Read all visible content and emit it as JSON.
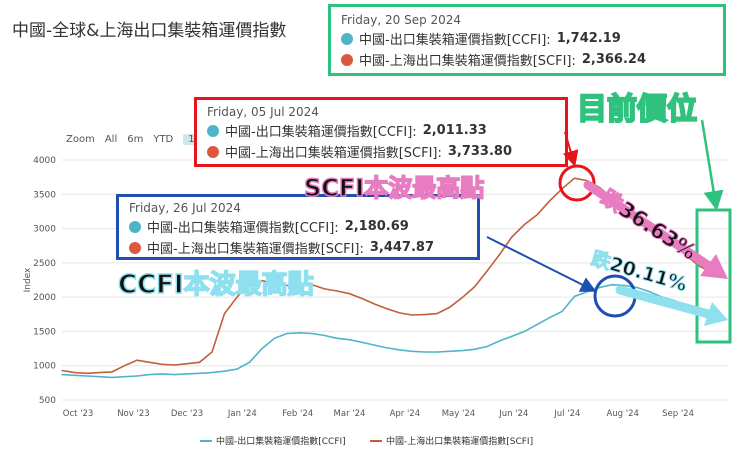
{
  "header": {
    "title": "中國-全球&上海出口集裝箱運價指數"
  },
  "zoom": {
    "label": "Zoom",
    "options": [
      "All",
      "6m",
      "YTD",
      "1y"
    ],
    "active": "1y"
  },
  "colors": {
    "ccfi": "#4fb3c9",
    "scfi": "#c0603b",
    "red": "#e8141b",
    "blue": "#1f4fb0",
    "green": "#2ec27e",
    "pink": "#e77cc0",
    "cyan": "#8fe0ef"
  },
  "tooltips": {
    "sep20": {
      "date": "Friday, 20 Sep 2024",
      "ccfi_label": "中國-出口集裝箱運價指數[CCFI]:",
      "ccfi_value": "1,742.19",
      "scfi_label": "中國-上海出口集裝箱運價指數[SCFI]:",
      "scfi_value": "2,366.24"
    },
    "jul05": {
      "date": "Friday, 05 Jul 2024",
      "ccfi_label": "中國-出口集裝箱運價指數[CCFI]:",
      "ccfi_value": "2,011.33",
      "scfi_label": "中國-上海出口集裝箱運價指數[SCFI]:",
      "scfi_value": "3,733.80"
    },
    "jul26": {
      "date": "Friday, 26 Jul 2024",
      "ccfi_label": "中國-出口集裝箱運價指數[CCFI]:",
      "ccfi_value": "2,180.69",
      "scfi_label": "中國-上海出口集裝箱運價指數[SCFI]:",
      "scfi_value": "3,447.87"
    }
  },
  "annotations": {
    "current": "目前價位",
    "scfi_peak": "SCFI本波最高點",
    "ccfi_peak": "CCFI本波最高點",
    "scfi_drop": "跌36.63%",
    "ccfi_drop": "跌20.11%"
  },
  "chart_data": {
    "type": "line",
    "title": "中國-全球&上海出口集裝箱運價指數",
    "xlabel": "",
    "ylabel": "Index",
    "ylim": [
      500,
      4000
    ],
    "yticks": [
      500,
      1000,
      1500,
      2000,
      2500,
      3000,
      3500,
      4000
    ],
    "xticks": [
      "Oct '23",
      "Nov '23",
      "Dec '23",
      "Jan '24",
      "Feb '24",
      "Mar '24",
      "Apr '24",
      "May '24",
      "Jun '24",
      "Jul '24",
      "Aug '24",
      "Sep '24"
    ],
    "x": [
      "2023-09-22",
      "2023-09-29",
      "2023-10-06",
      "2023-10-13",
      "2023-10-20",
      "2023-10-27",
      "2023-11-03",
      "2023-11-10",
      "2023-11-17",
      "2023-11-24",
      "2023-12-01",
      "2023-12-08",
      "2023-12-15",
      "2023-12-22",
      "2023-12-29",
      "2024-01-05",
      "2024-01-12",
      "2024-01-19",
      "2024-01-26",
      "2024-02-02",
      "2024-02-09",
      "2024-02-16",
      "2024-02-23",
      "2024-03-01",
      "2024-03-08",
      "2024-03-15",
      "2024-03-22",
      "2024-03-29",
      "2024-04-05",
      "2024-04-12",
      "2024-04-19",
      "2024-04-26",
      "2024-05-03",
      "2024-05-10",
      "2024-05-17",
      "2024-05-24",
      "2024-05-31",
      "2024-06-07",
      "2024-06-14",
      "2024-06-21",
      "2024-06-28",
      "2024-07-05",
      "2024-07-12",
      "2024-07-19",
      "2024-07-26",
      "2024-08-02",
      "2024-08-09",
      "2024-08-16",
      "2024-08-23",
      "2024-08-30",
      "2024-09-06",
      "2024-09-13",
      "2024-09-20"
    ],
    "series": [
      {
        "name": "中國-出口集裝箱運價指數[CCFI]",
        "color": "#4fb3c9",
        "values": [
          870,
          860,
          850,
          840,
          830,
          840,
          850,
          870,
          880,
          870,
          880,
          890,
          900,
          920,
          950,
          1050,
          1250,
          1400,
          1470,
          1480,
          1470,
          1440,
          1400,
          1380,
          1340,
          1300,
          1260,
          1230,
          1210,
          1200,
          1200,
          1210,
          1220,
          1240,
          1280,
          1360,
          1430,
          1500,
          1600,
          1700,
          1790,
          2011,
          2080,
          2140,
          2181,
          2170,
          2140,
          2080,
          2000,
          1950,
          1880,
          1800,
          1742
        ]
      },
      {
        "name": "中國-上海出口集裝箱運價指數[SCFI]",
        "color": "#c0603b",
        "values": [
          930,
          900,
          890,
          900,
          910,
          1000,
          1080,
          1050,
          1020,
          1010,
          1030,
          1050,
          1200,
          1760,
          2000,
          2200,
          2240,
          2200,
          2170,
          2190,
          2180,
          2120,
          2090,
          2050,
          1980,
          1900,
          1830,
          1770,
          1740,
          1745,
          1760,
          1850,
          1990,
          2150,
          2380,
          2620,
          2880,
          3060,
          3200,
          3400,
          3580,
          3734,
          3700,
          3600,
          3448,
          3320,
          3200,
          3100,
          2950,
          2800,
          2600,
          2450,
          2366
        ]
      }
    ]
  }
}
